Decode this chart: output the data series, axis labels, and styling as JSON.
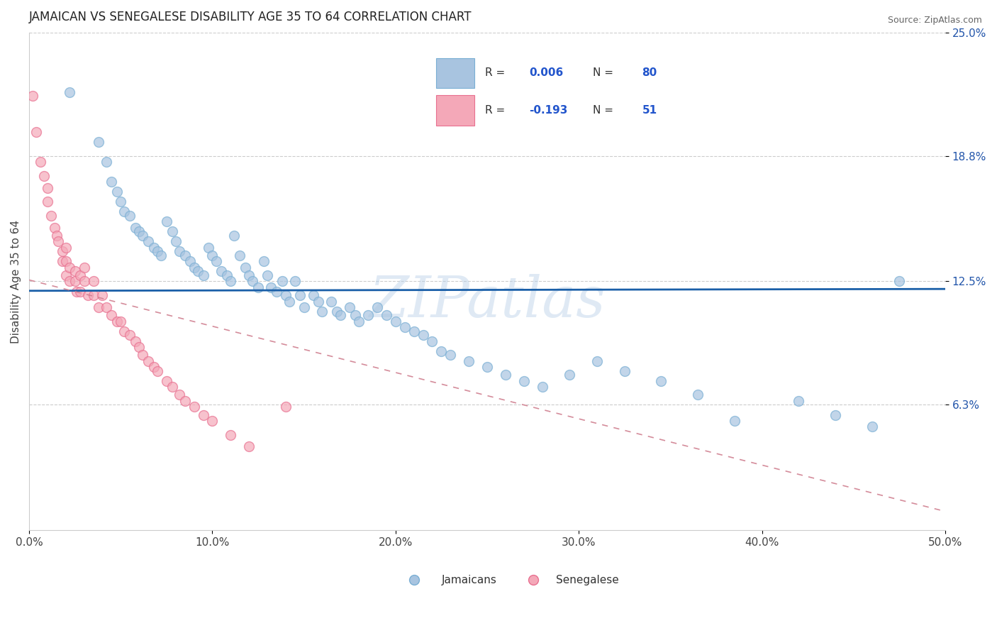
{
  "title": "JAMAICAN VS SENEGALESE DISABILITY AGE 35 TO 64 CORRELATION CHART",
  "source": "Source: ZipAtlas.com",
  "ylabel": "Disability Age 35 to 64",
  "xlim": [
    0.0,
    0.5
  ],
  "ylim": [
    0.0,
    0.25
  ],
  "xtick_labels": [
    "0.0%",
    "10.0%",
    "20.0%",
    "30.0%",
    "40.0%",
    "50.0%"
  ],
  "xtick_vals": [
    0.0,
    0.1,
    0.2,
    0.3,
    0.4,
    0.5
  ],
  "ytick_labels": [
    "6.3%",
    "12.5%",
    "18.8%",
    "25.0%"
  ],
  "ytick_vals": [
    0.063,
    0.125,
    0.188,
    0.25
  ],
  "jamaican_color": "#a8c4e0",
  "jamaican_edge_color": "#7aafd4",
  "senegalese_color": "#f4a8b8",
  "senegalese_edge_color": "#e87090",
  "jamaican_line_color": "#1a5fa8",
  "senegalese_line_color": "#d08090",
  "legend_R_jamaican": "0.006",
  "legend_N_jamaican": "80",
  "legend_R_senegalese": "-0.193",
  "legend_N_senegalese": "51",
  "watermark": "ZIPatlas",
  "jamaican_x": [
    0.022,
    0.038,
    0.042,
    0.045,
    0.048,
    0.05,
    0.052,
    0.055,
    0.058,
    0.06,
    0.062,
    0.065,
    0.068,
    0.07,
    0.072,
    0.075,
    0.078,
    0.08,
    0.082,
    0.085,
    0.088,
    0.09,
    0.092,
    0.095,
    0.098,
    0.1,
    0.102,
    0.105,
    0.108,
    0.11,
    0.112,
    0.115,
    0.118,
    0.12,
    0.122,
    0.125,
    0.128,
    0.13,
    0.132,
    0.135,
    0.138,
    0.14,
    0.142,
    0.145,
    0.148,
    0.15,
    0.155,
    0.158,
    0.16,
    0.165,
    0.168,
    0.17,
    0.175,
    0.178,
    0.18,
    0.185,
    0.19,
    0.195,
    0.2,
    0.205,
    0.21,
    0.215,
    0.22,
    0.225,
    0.23,
    0.24,
    0.25,
    0.26,
    0.27,
    0.28,
    0.295,
    0.31,
    0.325,
    0.345,
    0.365,
    0.385,
    0.42,
    0.44,
    0.46,
    0.475
  ],
  "jamaican_y": [
    0.22,
    0.195,
    0.185,
    0.175,
    0.17,
    0.165,
    0.16,
    0.158,
    0.152,
    0.15,
    0.148,
    0.145,
    0.142,
    0.14,
    0.138,
    0.155,
    0.15,
    0.145,
    0.14,
    0.138,
    0.135,
    0.132,
    0.13,
    0.128,
    0.142,
    0.138,
    0.135,
    0.13,
    0.128,
    0.125,
    0.148,
    0.138,
    0.132,
    0.128,
    0.125,
    0.122,
    0.135,
    0.128,
    0.122,
    0.12,
    0.125,
    0.118,
    0.115,
    0.125,
    0.118,
    0.112,
    0.118,
    0.115,
    0.11,
    0.115,
    0.11,
    0.108,
    0.112,
    0.108,
    0.105,
    0.108,
    0.112,
    0.108,
    0.105,
    0.102,
    0.1,
    0.098,
    0.095,
    0.09,
    0.088,
    0.085,
    0.082,
    0.078,
    0.075,
    0.072,
    0.078,
    0.085,
    0.08,
    0.075,
    0.068,
    0.055,
    0.065,
    0.058,
    0.052,
    0.125
  ],
  "senegalese_x": [
    0.002,
    0.004,
    0.006,
    0.008,
    0.01,
    0.01,
    0.012,
    0.014,
    0.015,
    0.016,
    0.018,
    0.018,
    0.02,
    0.02,
    0.02,
    0.022,
    0.022,
    0.025,
    0.025,
    0.026,
    0.028,
    0.028,
    0.03,
    0.03,
    0.032,
    0.035,
    0.035,
    0.038,
    0.04,
    0.042,
    0.045,
    0.048,
    0.05,
    0.052,
    0.055,
    0.058,
    0.06,
    0.062,
    0.065,
    0.068,
    0.07,
    0.075,
    0.078,
    0.082,
    0.085,
    0.09,
    0.095,
    0.1,
    0.11,
    0.12,
    0.14
  ],
  "senegalese_y": [
    0.218,
    0.2,
    0.185,
    0.178,
    0.172,
    0.165,
    0.158,
    0.152,
    0.148,
    0.145,
    0.14,
    0.135,
    0.142,
    0.135,
    0.128,
    0.132,
    0.125,
    0.13,
    0.125,
    0.12,
    0.128,
    0.12,
    0.132,
    0.125,
    0.118,
    0.125,
    0.118,
    0.112,
    0.118,
    0.112,
    0.108,
    0.105,
    0.105,
    0.1,
    0.098,
    0.095,
    0.092,
    0.088,
    0.085,
    0.082,
    0.08,
    0.075,
    0.072,
    0.068,
    0.065,
    0.062,
    0.058,
    0.055,
    0.048,
    0.042,
    0.062
  ]
}
